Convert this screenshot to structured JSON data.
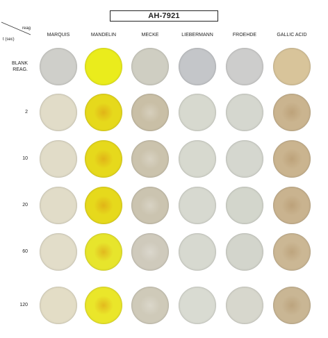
{
  "title": "AH-7921",
  "corner": {
    "reagent_label": "reag",
    "time_label": "t (sec)"
  },
  "columns": [
    "MARQUIS",
    "MANDELIN",
    "MECKE",
    "LIEBERMANN",
    "FROEHDE",
    "GALLIC ACID"
  ],
  "rows": [
    {
      "label_line1": "BLANK",
      "label_line2": "REAG.",
      "colors": [
        "#cfcfca",
        "#eaec1c",
        "#cfcec2",
        "#c4c6c9",
        "#cdcdcc",
        "#d8c49a"
      ]
    },
    {
      "label_line1": "2",
      "label_line2": "",
      "colors": [
        "#e1dcc8",
        "#e6d91c",
        "#c9bfa6",
        "#d7d9cf",
        "#d5d7cf",
        "#cab48f"
      ]
    },
    {
      "label_line1": "10",
      "label_line2": "",
      "colors": [
        "#e1dcc8",
        "#e6d91c",
        "#cbc3ad",
        "#d7d9cf",
        "#d5d7cf",
        "#cab48f"
      ]
    },
    {
      "label_line1": "20",
      "label_line2": "",
      "colors": [
        "#e1dcc8",
        "#e6d91c",
        "#cbc4b0",
        "#d7d9d0",
        "#d3d6cc",
        "#c9b38f"
      ]
    },
    {
      "label_line1": "60",
      "label_line2": "",
      "colors": [
        "#e2ddc9",
        "#e7e52c",
        "#cfcabc",
        "#d7d9d0",
        "#d3d5cc",
        "#cbb794"
      ]
    },
    {
      "label_line1": "120",
      "label_line2": "",
      "colors": [
        "#e3ddc6",
        "#eae62a",
        "#cfcab9",
        "#d9dbd2",
        "#d7d7cd",
        "#c9b694"
      ]
    }
  ]
}
